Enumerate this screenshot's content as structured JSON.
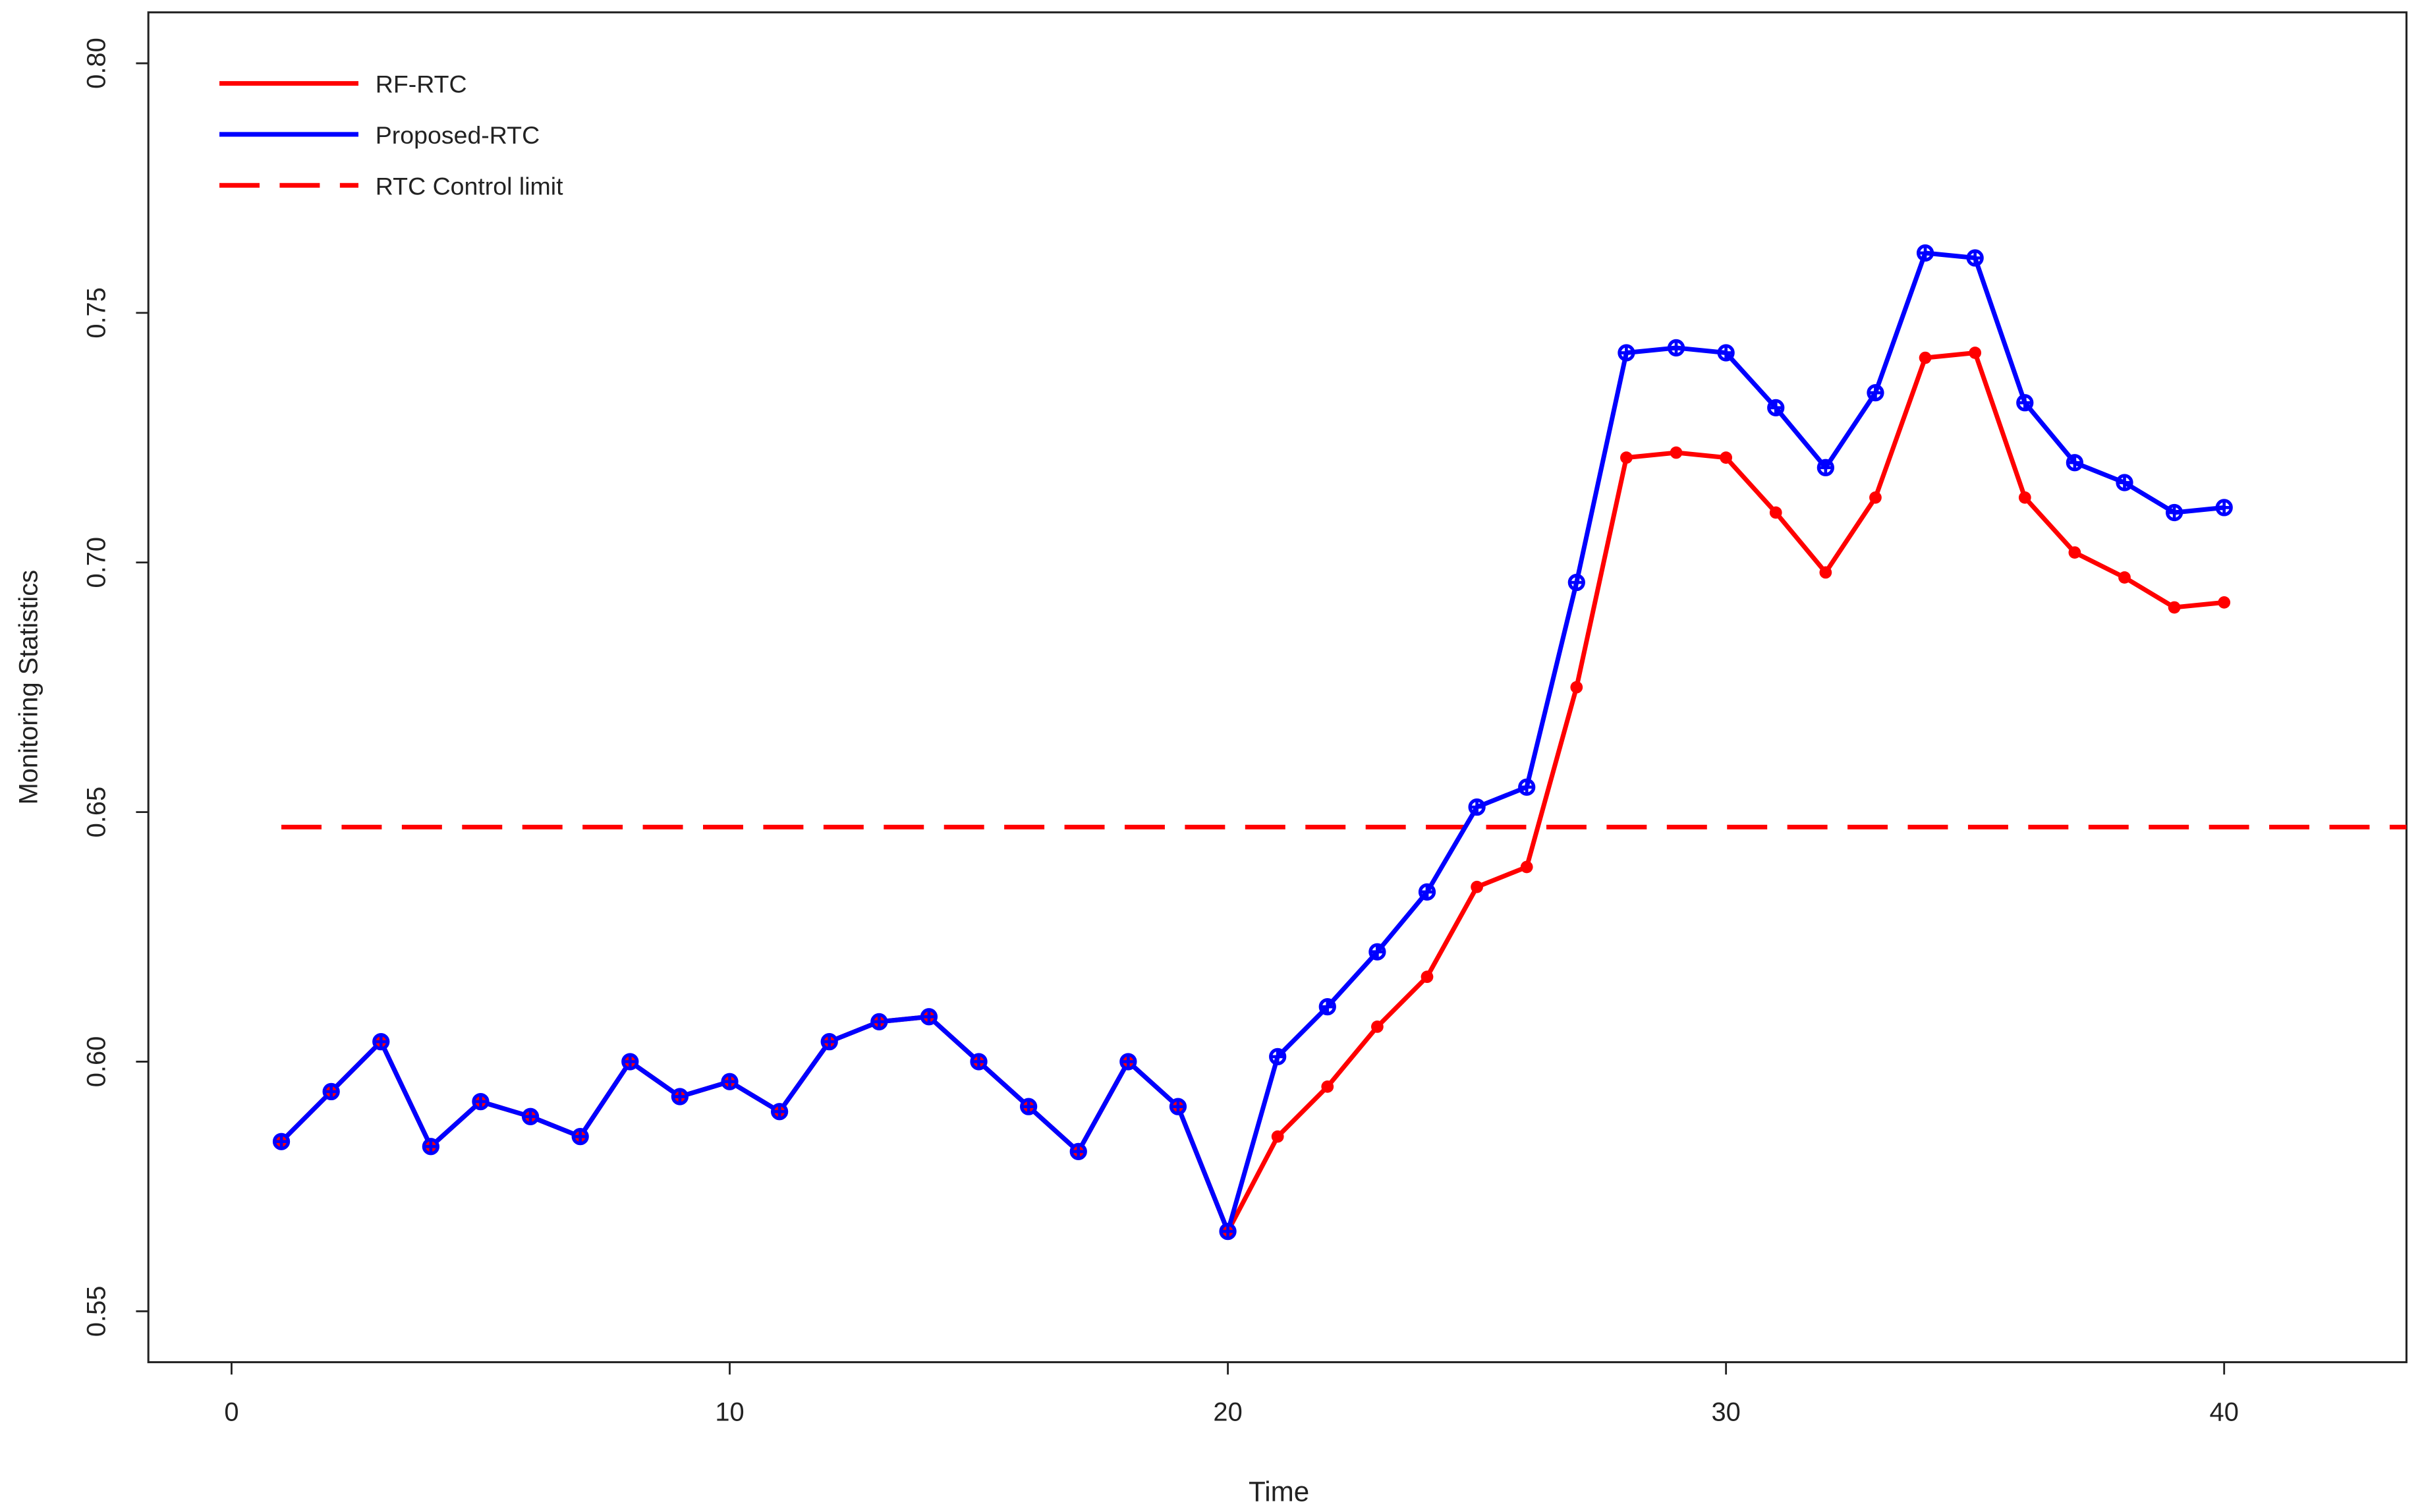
{
  "chart_data": {
    "type": "line",
    "x_label": "Time",
    "y_label": "Monitoring Statistics",
    "x": [
      1,
      2,
      3,
      4,
      5,
      6,
      7,
      8,
      9,
      10,
      11,
      12,
      13,
      14,
      15,
      16,
      17,
      18,
      19,
      20,
      21,
      22,
      23,
      24,
      25,
      26,
      27,
      28,
      29,
      30,
      31,
      32,
      33,
      34,
      35,
      36,
      37,
      38,
      39,
      40
    ],
    "series": [
      {
        "name": "RF-RTC",
        "color": "#ff0000",
        "marker": "dot",
        "values": [
          0.584,
          0.594,
          0.604,
          0.583,
          0.592,
          0.589,
          0.585,
          0.6,
          0.593,
          0.596,
          0.59,
          0.604,
          0.608,
          0.609,
          0.6,
          0.591,
          0.582,
          0.6,
          0.591,
          0.566,
          0.585,
          0.595,
          0.607,
          0.617,
          0.635,
          0.639,
          0.675,
          0.721,
          0.722,
          0.721,
          0.71,
          0.698,
          0.713,
          0.741,
          0.742,
          0.713,
          0.702,
          0.697,
          0.691,
          0.692
        ]
      },
      {
        "name": "Proposed-RTC",
        "color": "#0000ff",
        "marker": "circle-cross",
        "values": [
          0.584,
          0.594,
          0.604,
          0.583,
          0.592,
          0.589,
          0.585,
          0.6,
          0.593,
          0.596,
          0.59,
          0.604,
          0.608,
          0.609,
          0.6,
          0.591,
          0.582,
          0.6,
          0.591,
          0.566,
          0.601,
          0.611,
          0.622,
          0.634,
          0.651,
          0.655,
          0.696,
          0.742,
          0.743,
          0.742,
          0.731,
          0.719,
          0.734,
          0.762,
          0.761,
          0.732,
          0.72,
          0.716,
          0.71,
          0.711
        ]
      }
    ],
    "control_limit": {
      "name": "RTC Control limit",
      "color": "#ff0000",
      "value": 0.647
    },
    "xlim": [
      -1.67,
      43.66
    ],
    "ylim": [
      0.5398,
      0.8102
    ],
    "xticks": [
      0,
      10,
      20,
      30,
      40
    ],
    "yticks": [
      0.55,
      {
        "value": 0.6,
        "label": "0.60"
      },
      0.65,
      {
        "value": 0.7,
        "label": "0.70"
      },
      0.75,
      {
        "value": 0.8,
        "label": "0.80"
      }
    ],
    "legend": "top-left"
  }
}
